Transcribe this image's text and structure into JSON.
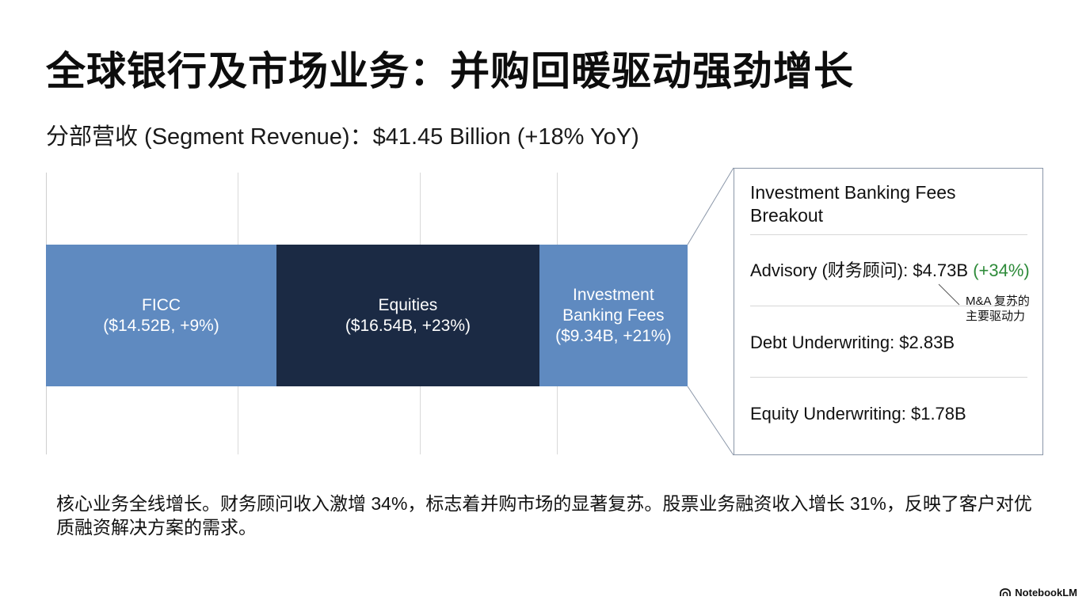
{
  "slide": {
    "title": "全球银行及市场业务：并购回暖驱动强劲增长",
    "subtitle": "分部营收 (Segment Revenue)：$41.45 Billion (+18% YoY)",
    "commentary": "核心业务全线增长。财务顾问收入激增 34%，标志着并购市场的显著复苏。股票业务融资收入增长 31%，反映了客户对优质融资解决方案的需求。",
    "logo_text": "NotebookLM",
    "logo_icon": "notebooklm-logo-icon"
  },
  "chart_data": {
    "type": "bar",
    "orientation": "horizontal-stacked",
    "total_label": "$41.45 Billion (+18% YoY)",
    "units": "USD billions",
    "grid": true,
    "segments": [
      {
        "name": "FICC",
        "label_line1": "FICC",
        "label_line2": "($14.52B, +9%)",
        "value": 14.52,
        "growth_pct": 9,
        "color": "#5f8ac0"
      },
      {
        "name": "Equities",
        "label_line1": "Equities",
        "label_line2": "($16.54B, +23%)",
        "value": 16.54,
        "growth_pct": 23,
        "color": "#1b2a44"
      },
      {
        "name": "Investment Banking Fees",
        "label_line1": "Investment",
        "label_line1b": "Banking Fees",
        "label_line2": "($9.34B, +21%)",
        "value": 9.34,
        "growth_pct": 21,
        "color": "#5f8ac0"
      }
    ]
  },
  "breakout": {
    "title": "Investment Banking Fees Breakout",
    "items": [
      {
        "name": "Advisory",
        "text": "Advisory (财务顾问): $4.73B ",
        "growth": "(+34%)",
        "value": 4.73,
        "growth_pct": 34
      },
      {
        "name": "Debt Underwriting",
        "text": "Debt Underwriting: $2.83B",
        "value": 2.83
      },
      {
        "name": "Equity Underwriting",
        "text": "Equity Underwriting: $1.78B",
        "value": 1.78
      }
    ],
    "note_line1": "M&A 复苏的",
    "note_line2": "主要驱动力"
  },
  "colors": {
    "light_bar": "#5f8ac0",
    "dark_bar": "#1b2a44",
    "growth_green": "#2e8b3a",
    "frame": "#8a96a8"
  }
}
